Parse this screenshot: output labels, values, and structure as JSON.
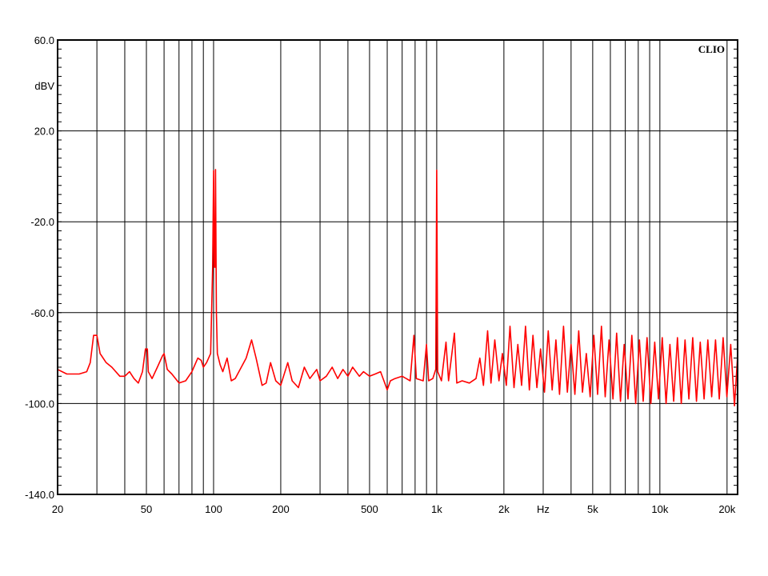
{
  "chart_data": {
    "type": "line",
    "title": "",
    "logo": "CLIO",
    "xlabel": "Hz",
    "ylabel": "dBV",
    "x_scale": "log",
    "xlim": [
      20,
      22300
    ],
    "ylim": [
      -140,
      60
    ],
    "grid": true,
    "y_ticks": [
      {
        "value": 60,
        "label": "60.0"
      },
      {
        "value": 40,
        "label": "dBV"
      },
      {
        "value": 20,
        "label": "20.0"
      },
      {
        "value": -20,
        "label": "-20.0"
      },
      {
        "value": -60,
        "label": "-60.0"
      },
      {
        "value": -100,
        "label": "-100.0"
      },
      {
        "value": -140,
        "label": "-140.0"
      }
    ],
    "y_grid": [
      60,
      20,
      -20,
      -60,
      -100,
      -140
    ],
    "x_ticks": [
      {
        "value": 20,
        "label": "20"
      },
      {
        "value": 50,
        "label": "50"
      },
      {
        "value": 100,
        "label": "100"
      },
      {
        "value": 200,
        "label": "200"
      },
      {
        "value": 500,
        "label": "500"
      },
      {
        "value": 1000,
        "label": "1k"
      },
      {
        "value": 2000,
        "label": "2k"
      },
      {
        "value": 3000,
        "label": "Hz"
      },
      {
        "value": 5000,
        "label": "5k"
      },
      {
        "value": 10000,
        "label": "10k"
      },
      {
        "value": 20000,
        "label": "20k"
      }
    ],
    "x_grid": [
      30,
      40,
      50,
      60,
      70,
      80,
      90,
      100,
      200,
      300,
      400,
      500,
      600,
      700,
      800,
      900,
      1000,
      2000,
      3000,
      4000,
      5000,
      6000,
      7000,
      8000,
      9000,
      10000,
      20000
    ],
    "series_color": "#ff0000",
    "series": [
      {
        "points": [
          [
            20,
            -85
          ],
          [
            22,
            -87
          ],
          [
            25,
            -87
          ],
          [
            27,
            -86
          ],
          [
            28,
            -82
          ],
          [
            29,
            -70
          ],
          [
            30,
            -70
          ],
          [
            31,
            -78
          ],
          [
            33,
            -82
          ],
          [
            35,
            -84
          ],
          [
            38,
            -88
          ],
          [
            40,
            -88
          ],
          [
            42,
            -86
          ],
          [
            44,
            -89
          ],
          [
            46,
            -91
          ],
          [
            48,
            -86
          ],
          [
            49.5,
            -76
          ],
          [
            50.5,
            -76
          ],
          [
            51,
            -86
          ],
          [
            53,
            -89
          ],
          [
            56,
            -84
          ],
          [
            59,
            -79
          ],
          [
            60,
            -78
          ],
          [
            62,
            -85
          ],
          [
            65,
            -87
          ],
          [
            70,
            -91
          ],
          [
            75,
            -90
          ],
          [
            80,
            -86
          ],
          [
            85,
            -80
          ],
          [
            88,
            -81
          ],
          [
            90,
            -84
          ],
          [
            93,
            -82
          ],
          [
            97,
            -78
          ],
          [
            99,
            -40
          ],
          [
            100,
            2.5
          ],
          [
            100.8,
            -40
          ],
          [
            101.5,
            -40
          ],
          [
            102,
            3
          ],
          [
            103,
            -60
          ],
          [
            104,
            -78
          ],
          [
            107,
            -83
          ],
          [
            110,
            -86
          ],
          [
            115,
            -80
          ],
          [
            120,
            -90
          ],
          [
            125,
            -89
          ],
          [
            140,
            -80
          ],
          [
            148,
            -72
          ],
          [
            155,
            -80
          ],
          [
            165,
            -92
          ],
          [
            172,
            -91
          ],
          [
            180,
            -82
          ],
          [
            190,
            -90
          ],
          [
            200,
            -92
          ],
          [
            215,
            -82
          ],
          [
            225,
            -90
          ],
          [
            240,
            -93
          ],
          [
            255,
            -84
          ],
          [
            270,
            -89
          ],
          [
            290,
            -85
          ],
          [
            300,
            -90
          ],
          [
            320,
            -88
          ],
          [
            340,
            -84
          ],
          [
            360,
            -89
          ],
          [
            380,
            -85
          ],
          [
            400,
            -88
          ],
          [
            420,
            -84
          ],
          [
            450,
            -88
          ],
          [
            470,
            -86
          ],
          [
            500,
            -88
          ],
          [
            530,
            -87
          ],
          [
            560,
            -86
          ],
          [
            580,
            -90
          ],
          [
            600,
            -94
          ],
          [
            620,
            -90
          ],
          [
            650,
            -89
          ],
          [
            700,
            -88
          ],
          [
            760,
            -90
          ],
          [
            790,
            -70
          ],
          [
            810,
            -89
          ],
          [
            870,
            -90
          ],
          [
            900,
            -74
          ],
          [
            920,
            -90
          ],
          [
            960,
            -89
          ],
          [
            990,
            -85
          ],
          [
            1000,
            2.7
          ],
          [
            1010,
            -86
          ],
          [
            1050,
            -90
          ],
          [
            1100,
            -73
          ],
          [
            1130,
            -90
          ],
          [
            1200,
            -69
          ],
          [
            1230,
            -91
          ],
          [
            1300,
            -90
          ],
          [
            1400,
            -91
          ],
          [
            1500,
            -89
          ],
          [
            1560,
            -80
          ],
          [
            1620,
            -92
          ],
          [
            1690,
            -68
          ],
          [
            1750,
            -91
          ],
          [
            1820,
            -72
          ],
          [
            1900,
            -90
          ],
          [
            1970,
            -78
          ],
          [
            2050,
            -92
          ],
          [
            2130,
            -66
          ],
          [
            2220,
            -93
          ],
          [
            2310,
            -74
          ],
          [
            2400,
            -92
          ],
          [
            2500,
            -66
          ],
          [
            2600,
            -94
          ],
          [
            2700,
            -70
          ],
          [
            2810,
            -93
          ],
          [
            2920,
            -76
          ],
          [
            3040,
            -95
          ],
          [
            3160,
            -68
          ],
          [
            3290,
            -94
          ],
          [
            3420,
            -72
          ],
          [
            3550,
            -96
          ],
          [
            3700,
            -66
          ],
          [
            3850,
            -95
          ],
          [
            4000,
            -74
          ],
          [
            4160,
            -96
          ],
          [
            4330,
            -68
          ],
          [
            4500,
            -95
          ],
          [
            4680,
            -78
          ],
          [
            4870,
            -97
          ],
          [
            5060,
            -70
          ],
          [
            5260,
            -96
          ],
          [
            5470,
            -66
          ],
          [
            5690,
            -97
          ],
          [
            5920,
            -72
          ],
          [
            6160,
            -98
          ],
          [
            6400,
            -69
          ],
          [
            6660,
            -99
          ],
          [
            6920,
            -74
          ],
          [
            7200,
            -98
          ],
          [
            7490,
            -70
          ],
          [
            7790,
            -100
          ],
          [
            8100,
            -72
          ],
          [
            8420,
            -99
          ],
          [
            8760,
            -71
          ],
          [
            9110,
            -100
          ],
          [
            9480,
            -73
          ],
          [
            9860,
            -98
          ],
          [
            10250,
            -71
          ],
          [
            10660,
            -100
          ],
          [
            11090,
            -74
          ],
          [
            11530,
            -99
          ],
          [
            11990,
            -71
          ],
          [
            12470,
            -100
          ],
          [
            12970,
            -72
          ],
          [
            13490,
            -98
          ],
          [
            14030,
            -71
          ],
          [
            14590,
            -99
          ],
          [
            15170,
            -73
          ],
          [
            15780,
            -98
          ],
          [
            16410,
            -72
          ],
          [
            17070,
            -97
          ],
          [
            17750,
            -72
          ],
          [
            18460,
            -98
          ],
          [
            19200,
            -71
          ],
          [
            19970,
            -97
          ],
          [
            20770,
            -74
          ],
          [
            21600,
            -101
          ],
          [
            22300,
            -79
          ]
        ]
      }
    ]
  }
}
